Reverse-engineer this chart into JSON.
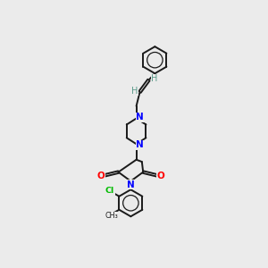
{
  "bg_color": "#ebebeb",
  "bond_color": "#1a1a1a",
  "N_color": "#0000ff",
  "O_color": "#ff0000",
  "Cl_color": "#00bb00",
  "H_color": "#5a9a8a",
  "figsize": [
    3.0,
    3.0
  ],
  "dpi": 100,
  "xlim": [
    0,
    10
  ],
  "ylim": [
    0,
    10
  ]
}
